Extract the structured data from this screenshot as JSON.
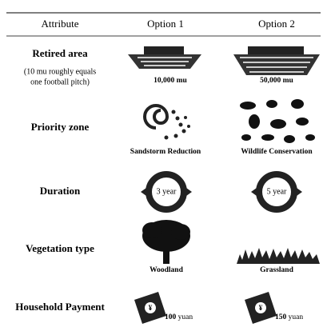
{
  "table": {
    "header": [
      "Attribute",
      "Option 1",
      "Option 2"
    ],
    "rows": [
      {
        "attribute": "Retired area",
        "note": [
          "(10 mu roughly equals",
          "one football pitch)"
        ],
        "options": [
          "10,000 mu",
          "50,000 mu"
        ]
      },
      {
        "attribute": "Priority zone",
        "options": [
          "Sandstorm Reduction",
          "Wildlife Conservation"
        ]
      },
      {
        "attribute": "Duration",
        "options": [
          "3 year",
          "5 year"
        ]
      },
      {
        "attribute": "Vegetation type",
        "options": [
          "Woodland",
          "Grassland"
        ]
      },
      {
        "attribute": "Household Payment",
        "options": [
          {
            "amount": "100",
            "unit": "yuan"
          },
          {
            "amount": "150",
            "unit": "yuan"
          }
        ]
      }
    ]
  }
}
